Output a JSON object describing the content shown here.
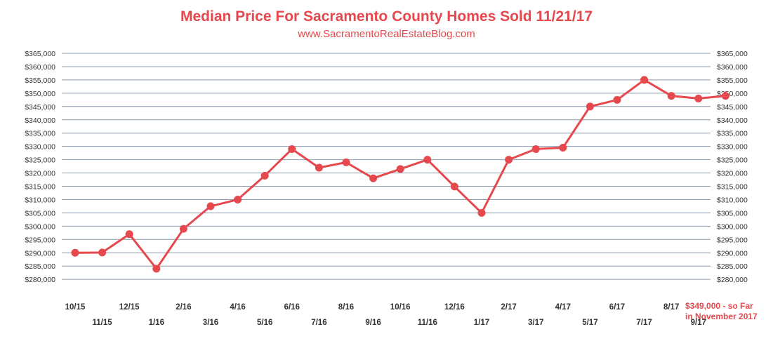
{
  "chart_data": {
    "type": "line",
    "title": "Median Price For Sacramento County Homes Sold 11/21/17",
    "subtitle": "www.SacramentoRealEstateBlog.com",
    "categories": [
      "10/15",
      "11/15",
      "12/15",
      "1/16",
      "2/16",
      "3/16",
      "4/16",
      "5/16",
      "6/16",
      "7/16",
      "8/16",
      "9/16",
      "10/16",
      "11/16",
      "12/16",
      "1/17",
      "2/17",
      "3/17",
      "4/17",
      "5/17",
      "6/17",
      "7/17",
      "8/17",
      "9/17",
      ""
    ],
    "series": [
      {
        "values": [
          290000,
          290100,
          297000,
          284000,
          299000,
          307500,
          310000,
          319000,
          329000,
          322000,
          324000,
          318000,
          321500,
          325000,
          314900,
          305000,
          325000,
          329000,
          329500,
          345000,
          347500,
          355000,
          349000,
          348000,
          349000
        ]
      }
    ],
    "ylim": [
      277000,
      367000
    ],
    "yticks": [
      280000,
      285000,
      290000,
      295000,
      300000,
      305000,
      310000,
      315000,
      320000,
      325000,
      330000,
      335000,
      340000,
      345000,
      350000,
      355000,
      360000,
      365000
    ],
    "ytick_labels": [
      "$280,000",
      "$285,000",
      "$290,000",
      "$295,000",
      "$300,000",
      "$305,000",
      "$310,000",
      "$315,000",
      "$320,000",
      "$325,000",
      "$330,000",
      "$335,000",
      "$340,000",
      "$345,000",
      "$350,000",
      "$355,000",
      "$360,000",
      "$365,000"
    ],
    "grid": true,
    "line_color": "#e5484d",
    "grid_color": "#8a99ab",
    "annotation": [
      "$349,000 - so Far",
      "in November 2017"
    ]
  }
}
